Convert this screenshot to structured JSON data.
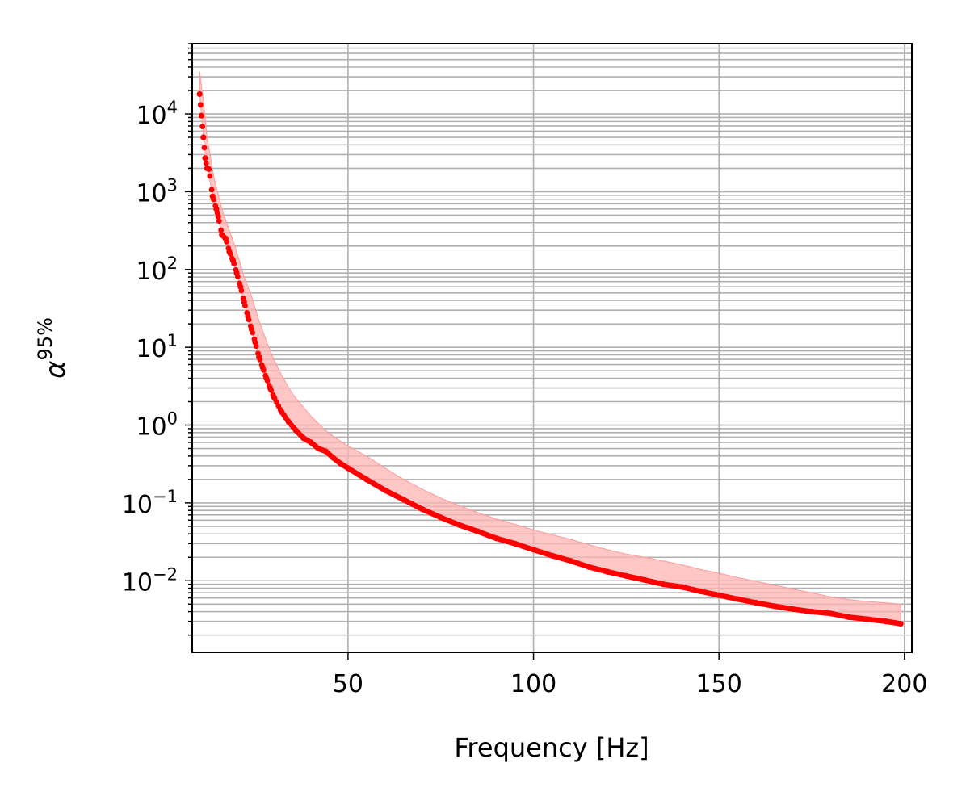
{
  "chart_data": {
    "type": "scatter",
    "title": "",
    "xlabel": "Frequency [Hz]",
    "ylabel": {
      "base": "α",
      "sup": "95%"
    },
    "xlim": [
      8,
      202
    ],
    "ylim": [
      0.0012,
      80000
    ],
    "yscale": "log",
    "x_ticks": [
      50,
      100,
      150,
      200
    ],
    "y_ticks": [
      {
        "value": 0.01,
        "base": "10",
        "exp": "−2"
      },
      {
        "value": 0.1,
        "base": "10",
        "exp": "−1"
      },
      {
        "value": 1,
        "base": "10",
        "exp": "0"
      },
      {
        "value": 10,
        "base": "10",
        "exp": "1"
      },
      {
        "value": 100,
        "base": "10",
        "exp": "2"
      },
      {
        "value": 1000,
        "base": "10",
        "exp": "3"
      },
      {
        "value": 10000,
        "base": "10",
        "exp": "4"
      }
    ],
    "grid": true,
    "colors": {
      "points": "#ff0000",
      "band": "#ffb3b3",
      "grid": "#b0b0b0"
    },
    "series": [
      {
        "marker": "dot",
        "x": [
          10,
          10.5,
          11,
          11.5,
          12,
          12.5,
          13.5,
          14.5,
          15,
          16,
          17,
          18,
          19,
          20,
          21,
          22,
          23,
          24,
          25,
          26,
          27,
          28,
          29,
          30,
          32,
          34,
          36,
          38,
          40,
          42,
          44,
          46,
          48,
          50,
          55,
          60,
          65,
          70,
          75,
          80,
          85,
          90,
          95,
          100,
          105,
          110,
          115,
          120,
          125,
          130,
          135,
          140,
          145,
          150,
          155,
          160,
          165,
          170,
          175,
          180,
          185,
          190,
          195,
          199
        ],
        "y": [
          18000,
          9500,
          5000,
          2700,
          2000,
          1950,
          870,
          600,
          480,
          280,
          250,
          170,
          130,
          90,
          60,
          38,
          25,
          17,
          11.5,
          7.5,
          5.5,
          4.0,
          3.0,
          2.3,
          1.5,
          1.1,
          0.85,
          0.68,
          0.6,
          0.5,
          0.46,
          0.38,
          0.32,
          0.28,
          0.2,
          0.145,
          0.11,
          0.083,
          0.065,
          0.052,
          0.043,
          0.035,
          0.03,
          0.025,
          0.021,
          0.018,
          0.015,
          0.013,
          0.0115,
          0.0102,
          0.009,
          0.0083,
          0.0073,
          0.0065,
          0.0058,
          0.0052,
          0.0047,
          0.0043,
          0.004,
          0.0038,
          0.0034,
          0.0032,
          0.003,
          0.0028
        ]
      }
    ],
    "band": {
      "x": [
        10,
        11,
        12,
        14,
        16,
        18,
        20,
        22,
        24,
        26,
        28,
        30,
        32,
        34,
        36,
        38,
        40,
        42,
        44,
        46,
        48,
        50,
        55,
        60,
        65,
        70,
        75,
        80,
        85,
        90,
        95,
        100,
        105,
        110,
        115,
        120,
        125,
        130,
        135,
        140,
        145,
        150,
        155,
        160,
        165,
        170,
        175,
        180,
        185,
        190,
        195,
        199
      ],
      "upper": [
        35000,
        15000,
        5000,
        1400,
        600,
        320,
        170,
        80,
        45,
        22,
        12,
        7,
        4.5,
        3.0,
        2.2,
        1.7,
        1.3,
        1.05,
        0.85,
        0.72,
        0.62,
        0.54,
        0.4,
        0.28,
        0.2,
        0.15,
        0.115,
        0.092,
        0.075,
        0.062,
        0.053,
        0.045,
        0.039,
        0.034,
        0.029,
        0.025,
        0.022,
        0.02,
        0.018,
        0.016,
        0.014,
        0.0125,
        0.011,
        0.0098,
        0.0088,
        0.0078,
        0.007,
        0.0062,
        0.0057,
        0.0054,
        0.0052,
        0.005
      ]
    }
  }
}
